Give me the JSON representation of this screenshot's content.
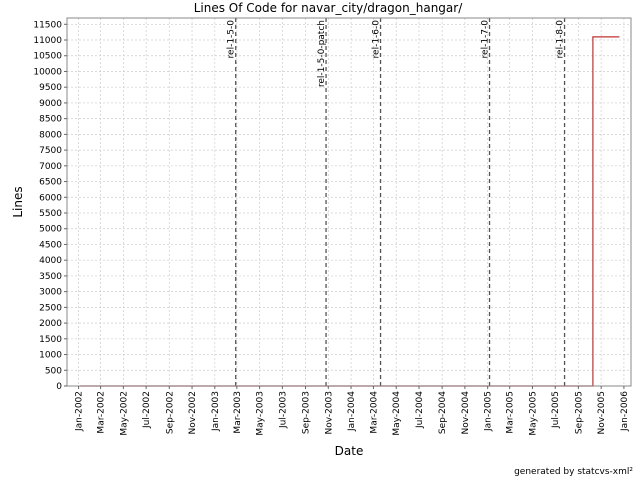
{
  "chart_data": {
    "type": "line",
    "title": "Lines Of Code for navar_city/dragon_hangar/",
    "xlabel": "Date",
    "ylabel": "Lines",
    "footer": "generated by statcvs-xml²",
    "xlim": [
      "2001-12-01",
      "2006-01-20"
    ],
    "ylim": [
      0,
      11700
    ],
    "y_ticks": [
      0,
      500,
      1000,
      1500,
      2000,
      2500,
      3000,
      3500,
      4000,
      4500,
      5000,
      5500,
      6000,
      6500,
      7000,
      7500,
      8000,
      8500,
      9000,
      9500,
      10000,
      10500,
      11000,
      11500
    ],
    "x_ticks": [
      {
        "date": "2002-01-01",
        "label": "Jan-2002"
      },
      {
        "date": "2002-03-01",
        "label": "Mar-2002"
      },
      {
        "date": "2002-05-01",
        "label": "May-2002"
      },
      {
        "date": "2002-07-01",
        "label": "Jul-2002"
      },
      {
        "date": "2002-09-01",
        "label": "Sep-2002"
      },
      {
        "date": "2002-11-01",
        "label": "Nov-2002"
      },
      {
        "date": "2003-01-01",
        "label": "Jan-2003"
      },
      {
        "date": "2003-03-01",
        "label": "Mar-2003"
      },
      {
        "date": "2003-05-01",
        "label": "May-2003"
      },
      {
        "date": "2003-07-01",
        "label": "Jul-2003"
      },
      {
        "date": "2003-09-01",
        "label": "Sep-2003"
      },
      {
        "date": "2003-11-01",
        "label": "Nov-2003"
      },
      {
        "date": "2004-01-01",
        "label": "Jan-2004"
      },
      {
        "date": "2004-03-01",
        "label": "Mar-2004"
      },
      {
        "date": "2004-05-01",
        "label": "May-2004"
      },
      {
        "date": "2004-07-01",
        "label": "Jul-2004"
      },
      {
        "date": "2004-09-01",
        "label": "Sep-2004"
      },
      {
        "date": "2004-11-01",
        "label": "Nov-2004"
      },
      {
        "date": "2005-01-01",
        "label": "Jan-2005"
      },
      {
        "date": "2005-03-01",
        "label": "Mar-2005"
      },
      {
        "date": "2005-05-01",
        "label": "May-2005"
      },
      {
        "date": "2005-07-01",
        "label": "Jul-2005"
      },
      {
        "date": "2005-09-01",
        "label": "Sep-2005"
      },
      {
        "date": "2005-11-01",
        "label": "Nov-2005"
      },
      {
        "date": "2006-01-01",
        "label": "Jan-2006"
      }
    ],
    "markers": [
      {
        "label": "rel-1-5-0",
        "date": "2003-02-26"
      },
      {
        "label": "rel-1-5-0-patch",
        "date": "2003-10-26"
      },
      {
        "label": "rel-1-6-0",
        "date": "2004-03-20"
      },
      {
        "label": "rel-1-7-0",
        "date": "2005-01-06"
      },
      {
        "label": "rel-1-8-0",
        "date": "2005-07-26"
      }
    ],
    "series": [
      {
        "color": "#c03030",
        "points": [
          {
            "x": "2002-01-05",
            "y": 0
          },
          {
            "x": "2005-10-10",
            "y": 0
          },
          {
            "x": "2005-10-10",
            "y": 11100
          },
          {
            "x": "2005-12-20",
            "y": 11100
          }
        ]
      }
    ],
    "grid": true,
    "colors": {
      "grid": "#cccccc",
      "marker": "#555555",
      "axis": "#000000"
    }
  }
}
